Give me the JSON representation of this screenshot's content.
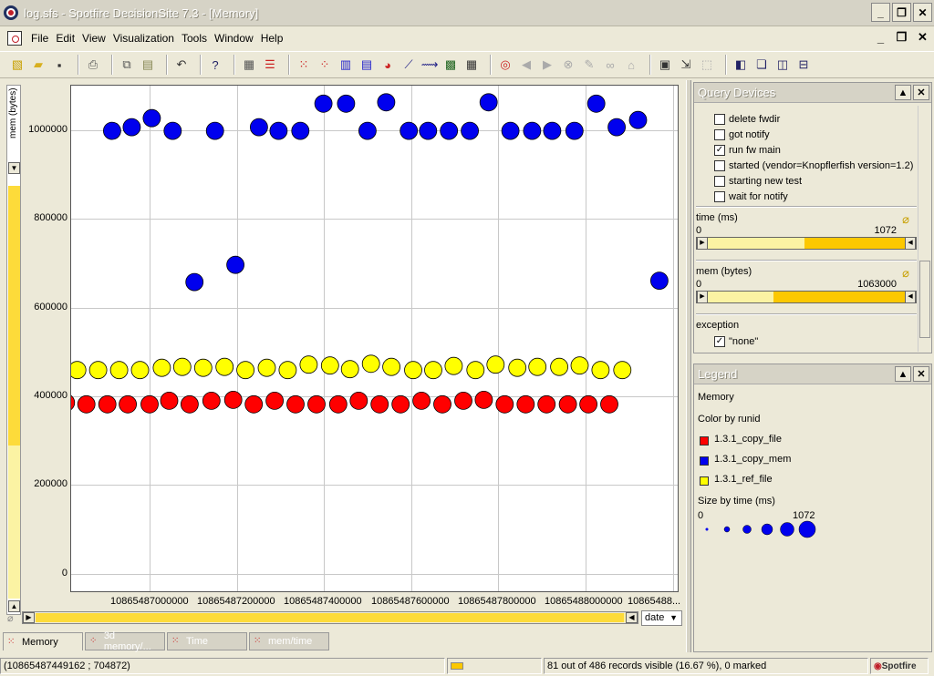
{
  "window": {
    "title": "log.sfs - Spotfire DecisionSite 7.3 - [Memory]"
  },
  "menu": [
    "File",
    "Edit",
    "View",
    "Visualization",
    "Tools",
    "Window",
    "Help"
  ],
  "plot": {
    "y_axis_selector": "mem (bytes)",
    "x_axis_selector": "date",
    "y_ticks": [
      "1000000",
      "800000",
      "600000",
      "400000",
      "200000",
      "0"
    ],
    "x_ticks": [
      "10865487000000",
      "10865487200000",
      "10865487400000",
      "10865487600000",
      "10865487800000",
      "10865488000000",
      "10865488..."
    ]
  },
  "chart_data": {
    "type": "scatter",
    "title": "",
    "xlabel": "date",
    "ylabel": "mem (bytes)",
    "ylim": [
      -20000,
      1100000
    ],
    "xlim": [
      10865486900000,
      10865488292000
    ],
    "size_by": "time (ms)",
    "series": [
      {
        "name": "1.3.1_copy_mem",
        "color": "#0000ee",
        "points": [
          [
            10865486994000,
            1000000
          ],
          [
            10865487039000,
            1008000
          ],
          [
            10865487085000,
            1028000
          ],
          [
            10865487133000,
            1000000
          ],
          [
            10865487183000,
            665000
          ],
          [
            10865487230000,
            1000000
          ],
          [
            10865487277000,
            703000
          ],
          [
            10865487331000,
            1008000
          ],
          [
            10865487376000,
            1000000
          ],
          [
            10865487426000,
            1000000
          ],
          [
            10865487479000,
            1060000
          ],
          [
            10865487531000,
            1060000
          ],
          [
            10865487580000,
            1000000
          ],
          [
            10865487623000,
            1063000
          ],
          [
            10865487675000,
            1000000
          ],
          [
            10865487719000,
            1000000
          ],
          [
            10865487767000,
            1000000
          ],
          [
            10865487815000,
            1000000
          ],
          [
            10865487858000,
            1063000
          ],
          [
            10865487908000,
            1000000
          ],
          [
            10865487958000,
            1000000
          ],
          [
            10865488004000,
            1000000
          ],
          [
            10865488055000,
            1000000
          ],
          [
            10865488105000,
            1060000
          ],
          [
            10865488152000,
            1008000
          ],
          [
            10865488201000,
            1024000
          ],
          [
            10865488250000,
            668000
          ]
        ]
      },
      {
        "name": "1.3.1_ref_file",
        "color": "#ffff00",
        "points": [
          [
            10865486914000,
            470000
          ],
          [
            10865486962000,
            470000
          ],
          [
            10865487010000,
            470000
          ],
          [
            10865487058000,
            470000
          ],
          [
            10865487108000,
            475000
          ],
          [
            10865487155000,
            477000
          ],
          [
            10865487203000,
            475000
          ],
          [
            10865487252000,
            477000
          ],
          [
            10865487300000,
            470000
          ],
          [
            10865487349000,
            475000
          ],
          [
            10865487397000,
            470000
          ],
          [
            10865487445000,
            482000
          ],
          [
            10865487494000,
            480000
          ],
          [
            10865487540000,
            472000
          ],
          [
            10865487588000,
            484000
          ],
          [
            10865487635000,
            477000
          ],
          [
            10865487685000,
            470000
          ],
          [
            10865487731000,
            470000
          ],
          [
            10865487778000,
            479000
          ],
          [
            10865487828000,
            470000
          ],
          [
            10865487874000,
            482000
          ],
          [
            10865487924000,
            475000
          ],
          [
            10865487970000,
            477000
          ],
          [
            10865488020000,
            477000
          ],
          [
            10865488067000,
            480000
          ],
          [
            10865488115000,
            470000
          ],
          [
            10865488165000,
            470000
          ]
        ]
      },
      {
        "name": "1.3.1_copy_file",
        "color": "#ff0000",
        "points": [
          [
            10865486888000,
            398000
          ],
          [
            10865486935000,
            394000
          ],
          [
            10865486983000,
            394000
          ],
          [
            10865487030000,
            394000
          ],
          [
            10865487080000,
            394000
          ],
          [
            10865487125000,
            402000
          ],
          [
            10865487172000,
            394000
          ],
          [
            10865487222000,
            402000
          ],
          [
            10865487272000,
            404000
          ],
          [
            10865487319000,
            394000
          ],
          [
            10865487367000,
            402000
          ],
          [
            10865487415000,
            394000
          ],
          [
            10865487463000,
            394000
          ],
          [
            10865487513000,
            394000
          ],
          [
            10865487560000,
            402000
          ],
          [
            10865487608000,
            394000
          ],
          [
            10865487656000,
            394000
          ],
          [
            10865487704000,
            402000
          ],
          [
            10865487752000,
            394000
          ],
          [
            10865487800000,
            402000
          ],
          [
            10865487847000,
            404000
          ],
          [
            10865487895000,
            394000
          ],
          [
            10865487943000,
            394000
          ],
          [
            10865487991000,
            394000
          ],
          [
            10865488040000,
            394000
          ],
          [
            10865488087000,
            394000
          ],
          [
            10865488135000,
            394000
          ]
        ]
      }
    ]
  },
  "query_devices": {
    "title": "Query Devices",
    "checkboxes": [
      {
        "label": "delete fwdir",
        "checked": false
      },
      {
        "label": "got notify",
        "checked": false
      },
      {
        "label": "run fw main",
        "checked": true
      },
      {
        "label": "started (vendor=Knopflerfish version=1.2)",
        "checked": false
      },
      {
        "label": "starting new test",
        "checked": false
      },
      {
        "label": "wait for notify",
        "checked": false
      }
    ],
    "time": {
      "label": "time (ms)",
      "min": "0",
      "max": "1072",
      "selected_from_fraction": 0.49
    },
    "mem": {
      "label": "mem (bytes)",
      "min": "0",
      "max": "1063000",
      "selected_from_fraction": 0.35
    },
    "exception": {
      "label": "exception",
      "option": "\"none\"",
      "checked": true
    }
  },
  "legend": {
    "title": "Legend",
    "subtitle": "Memory",
    "color_by": "Color by runid",
    "items": [
      {
        "label": "1.3.1_copy_file",
        "color": "#ff0000"
      },
      {
        "label": "1.3.1_copy_mem",
        "color": "#0000ee"
      },
      {
        "label": "1.3.1_ref_file",
        "color": "#ffff00"
      }
    ],
    "size_by": "Size by time (ms)",
    "size_min": "0",
    "size_max": "1072"
  },
  "tabs": [
    "Memory",
    "3d memory/...",
    "Time",
    "mem/time"
  ],
  "status": {
    "coords": "(10865487449162 ; 704872)",
    "records": "81 out of 486 records visible (16.67 %), 0 marked",
    "logo": "Spotfire"
  }
}
